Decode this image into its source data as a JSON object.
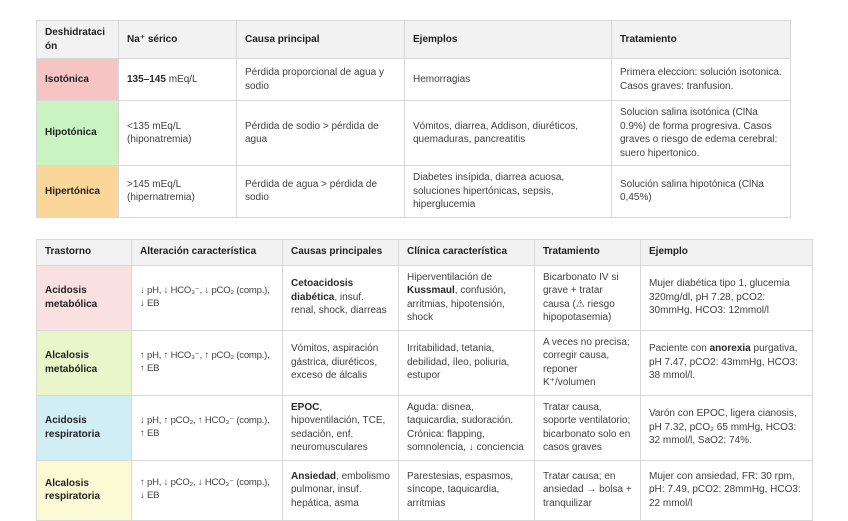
{
  "theme": {
    "header_bg": "#f2f2f2",
    "border_color": "#d8d8d8"
  },
  "dehydration_table": {
    "headers": [
      "Deshidratación",
      "Na⁺ sérico",
      "Causa principal",
      "Ejemplos",
      "Tratamiento"
    ],
    "rows": [
      {
        "color": "#f7c4c4",
        "cells": [
          "Isotónica",
          "**135–145** mEq/L",
          "Pérdida proporcional de agua y sodio",
          "Hemorragias",
          "Primera eleccion: solución isotonica. Casos graves: tranfusion."
        ]
      },
      {
        "color": "#c9f4c2",
        "cells": [
          "Hipotónica",
          "<135 mEq/L (hiponatremia)",
          "Pérdida de sodio > pérdida de agua",
          "Vómitos, diarrea, Addison, diuréticos, quemaduras, pancreatitis",
          "Solucion salina isotónica (ClNa 0.9%) de forma progresiva. Casos graves o riesgo de edema cerebral: suero hipertonico."
        ]
      },
      {
        "color": "#fbd699",
        "cells": [
          "Hipertónica",
          ">145 mEq/L (hipernatremia)",
          "Pérdida de agua > pérdida de sodio",
          "Diabetes insípida, diarrea acuosa, soluciones hipertónicas, sepsis, hiperglucemia",
          "Solución salina hipotónica (ClNa 0,45%)"
        ]
      }
    ]
  },
  "acid_base_table": {
    "headers": [
      "Trastorno",
      "Alteración característica",
      "Causas principales",
      "Clínica característica",
      "Tratamiento",
      "Ejemplo"
    ],
    "rows": [
      {
        "color": "#f9e1e1",
        "cells": [
          "Acidosis metabólica",
          "↓ pH, ↓ HCO₃⁻, ↓ pCO₂ (comp.), ↓ EB",
          "**Cetoacidosis diabética**, insuf. renal, shock, diarreas",
          "Hiperventilación de **Kussmaul**, confusión, arritmias, hipotensión, shock",
          "Bicarbonato IV si grave + tratar causa (⚠ riesgo hipopotasemia)",
          "Mujer diabética tipo 1, glucemia 320mg/dl, pH 7.28, pCO2: 30mmHg, HCO3: 12mmol/l"
        ]
      },
      {
        "color": "#e9f6ca",
        "cells": [
          "Alcalosis metabólica",
          "↑ pH, ↑ HCO₃⁻, ↑ pCO₂ (comp.), ↑ EB",
          "Vómitos, aspiración gástrica, diuréticos, exceso de álcalis",
          "Irritabilidad, tetania, debilidad, íleo, poliuria, estupor",
          "A veces no precisa; corregir causa, reponer K⁺/volumen",
          "Paciente con **anorexia** purgativa, pH 7.47, pCO2: 43mmHg, HCO3: 38 mmol/l."
        ]
      },
      {
        "color": "#d2eef5",
        "cells": [
          "Acidosis respiratoria",
          "↓ pH, ↑ pCO₂, ↑ HCO₃⁻ (comp.), ↑ EB",
          "**EPOC**, hipoventilación, TCE, sedación, enf. neuromusculares",
          "Aguda: disnea, taquicardia, sudoración. Crónica: flapping, somnolencia, ↓ conciencia",
          "Tratar causa, soporte ventilatorio; bicarbonato solo en casos graves",
          "Varón con EPOC, ligera cianosis, pH 7.32, pCO₂ 65 mmHg, HCO3: 32 mmol/l, SaO2: 74%."
        ]
      },
      {
        "color": "#fcfad4",
        "cells": [
          "Alcalosis respiratoria",
          "↑ pH, ↓ pCO₂, ↓ HCO₃⁻ (comp.), ↓ EB",
          "**Ansiedad**, embolismo pulmonar, insuf. hepática, asma",
          "Parestesias, espasmos, síncope, taquicardia, arritmias",
          "Tratar causa; en ansiedad → bolsa + tranquilizar",
          "Mujer con ansiedad, FR: 30 rpm, pH: 7.49, pCO2: 28mmHg, HCO3: 22 mmol/l"
        ]
      }
    ]
  }
}
